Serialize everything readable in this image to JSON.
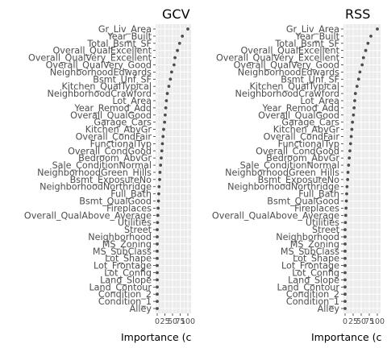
{
  "chart_data": [
    {
      "type": "scatter",
      "title": "GCV",
      "xlabel": "Importance (c",
      "ylabel": "",
      "xlim": [
        0,
        100
      ],
      "xticks": [
        0,
        25,
        50,
        75,
        100
      ],
      "grid": true,
      "legend": "none",
      "categories": [
        "Gr_Liv_Area",
        "Year_Built",
        "Total_Bsmt_SF",
        "Overall_QualExcellent",
        "Overall_QualVery_Excellent",
        "Overall_QualVery_Good",
        "NeighborhoodEdwards",
        "Bsmt_Unf_SF",
        "Kitchen_QualTypical",
        "NeighborhoodCrawford",
        "Lot_Area",
        "Year_Remod_Add",
        "Overall_QualGood",
        "Garage_Cars",
        "Kitchen_AbvGr",
        "Overall_CondFair",
        "FunctionalTyp",
        "Overall_CondGood",
        "Bedroom_AbvGr",
        "Sale_ConditionNormal",
        "NeighborhoodGreen_Hills",
        "Bsmt_ExposureNo",
        "NeighborhoodNorthridge",
        "Full_Bath",
        "Bsmt_QualGood",
        "Fireplaces",
        "Overall_QualAbove_Average",
        "Utilities",
        "Street",
        "Neighborhood",
        "MS_Zoning",
        "MS_SubClass",
        "Lot_Shape",
        "Lot_Frontage",
        "Lot_Config",
        "Land_Slope",
        "Land_Contour",
        "Condition_2",
        "Condition_1",
        "Alley"
      ],
      "values": [
        100,
        82,
        73,
        66,
        58,
        55,
        47,
        43,
        38,
        33,
        30,
        28,
        26,
        24,
        21,
        19,
        17,
        15,
        13,
        11,
        9,
        8,
        6,
        5,
        4,
        3,
        2,
        1,
        0,
        0,
        0,
        0,
        0,
        0,
        0,
        0,
        0,
        0,
        0,
        0
      ]
    },
    {
      "type": "scatter",
      "title": "RSS",
      "xlabel": "Importance (c",
      "ylabel": "",
      "xlim": [
        0,
        100
      ],
      "xticks": [
        0,
        25,
        50,
        75,
        100
      ],
      "grid": true,
      "legend": "none",
      "categories": [
        "Gr_Liv_Area",
        "Year_Built",
        "Total_Bsmt_SF",
        "Overall_QualExcellent",
        "Overall_QualVery_Excellent",
        "Overall_QualVery_Good",
        "NeighborhoodEdwards",
        "Bsmt_Unf_SF",
        "Kitchen_QualTypical",
        "NeighborhoodCrawford",
        "Lot_Area",
        "Year_Remod_Add",
        "Overall_QualGood",
        "Garage_Cars",
        "Kitchen_AbvGr",
        "Overall_CondFair",
        "FunctionalTyp",
        "Overall_CondGood",
        "Bedroom_AbvGr",
        "Sale_ConditionNormal",
        "NeighborhoodGreen_Hills",
        "Bsmt_ExposureNo",
        "NeighborhoodNorthridge",
        "Full_Bath",
        "Bsmt_QualGood",
        "Fireplaces",
        "Overall_QualAbove_Average",
        "Utilities",
        "Street",
        "Neighborhood",
        "MS_Zoning",
        "MS_SubClass",
        "Lot_Shape",
        "Lot_Frontage",
        "Lot_Config",
        "Land_Slope",
        "Land_Contour",
        "Condition_2",
        "Condition_1",
        "Alley"
      ],
      "values": [
        100,
        80,
        71,
        64,
        57,
        53,
        46,
        42,
        37,
        32,
        30,
        28,
        26,
        23,
        21,
        19,
        17,
        15,
        13,
        11,
        9,
        8,
        6,
        5,
        4,
        3,
        2,
        1,
        0,
        0,
        0,
        0,
        0,
        0,
        0,
        0,
        0,
        0,
        0,
        0
      ]
    }
  ],
  "style": {
    "panel_bg": "#ebebeb",
    "grid_color": "#ffffff",
    "point_color": "#4d4d4d",
    "text_color": "#4d4d4d",
    "title_color": "#000000"
  }
}
